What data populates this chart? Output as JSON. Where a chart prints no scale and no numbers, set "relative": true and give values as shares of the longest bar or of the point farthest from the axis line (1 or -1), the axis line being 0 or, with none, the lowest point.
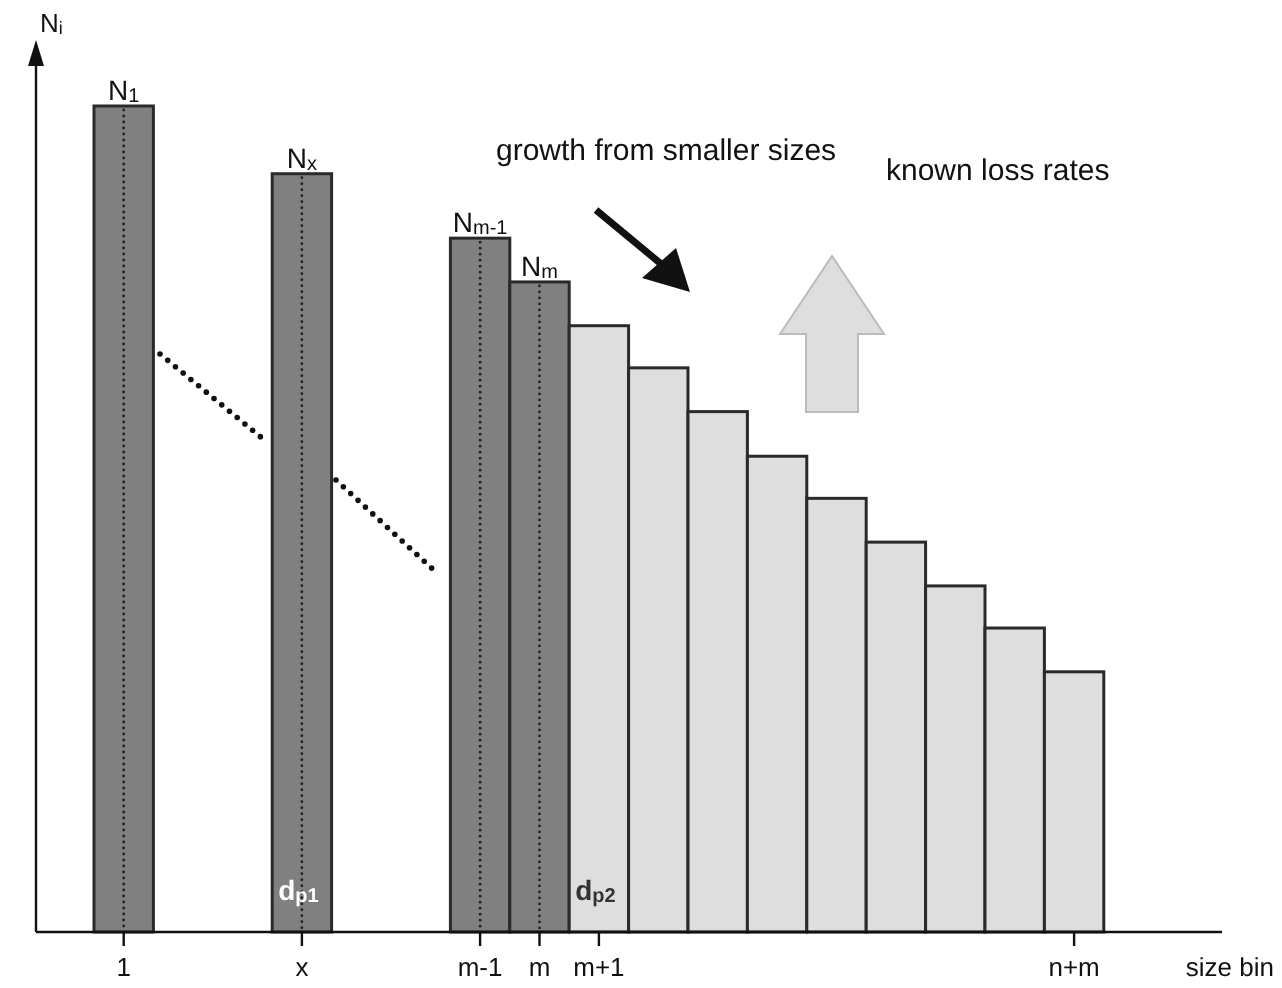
{
  "chart_data": {
    "type": "bar",
    "relative": true,
    "xlabel": "size bin",
    "ylabel": "N$_{i}$",
    "categories": [
      "1",
      null,
      null,
      "x",
      null,
      null,
      "m-1",
      "m",
      "m+1",
      null,
      null,
      null,
      null,
      null,
      null,
      null,
      "n+m"
    ],
    "values": [
      1,
      null,
      null,
      0.918,
      null,
      null,
      0.84,
      0.787,
      0.734,
      0.683,
      0.63,
      0.576,
      0.525,
      0.472,
      0.419,
      0.368,
      0.315
    ],
    "colors": [
      "#808080",
      null,
      null,
      "#808080",
      null,
      null,
      "#808080",
      "#808080",
      "#dedede",
      "#dedede",
      "#dedede",
      "#dedede",
      "#dedede",
      "#dedede",
      "#dedede",
      "#dedede",
      "#dedede"
    ],
    "annotations": [
      "growth from smaller sizes",
      "known loss rates",
      {
        "text": "N$_{1}$",
        "x": "1",
        "y": 1
      },
      {
        "text": "N$_{x}$",
        "x": "x",
        "y": 0.918
      },
      {
        "text": "N$_{m-1}$",
        "x": "m-1",
        "y": 0.84
      },
      {
        "text": "N$_{m}$",
        "x": "m",
        "y": 0.787
      },
      {
        "text": "d$_{p1}$",
        "x": "x",
        "y": 0
      },
      {
        "text": "d$_{p2}$",
        "x": "m+1",
        "y": 0
      }
    ]
  }
}
